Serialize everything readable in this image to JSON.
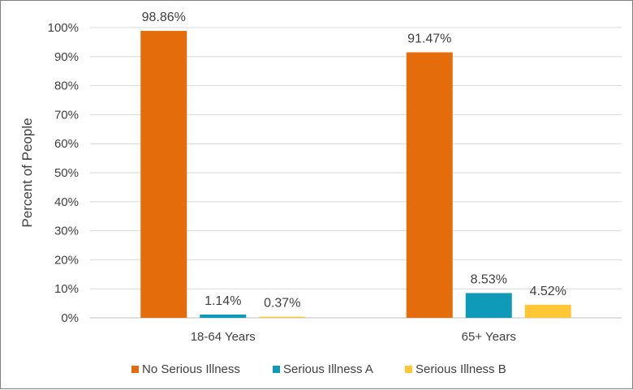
{
  "chart_data": {
    "type": "bar",
    "categories": [
      "18-64 Years",
      "65+ Years"
    ],
    "series": [
      {
        "name": "No Serious Illness",
        "values": [
          98.86,
          91.47
        ],
        "labels": [
          "98.86%",
          "91.47%"
        ],
        "color": "#E46C0A"
      },
      {
        "name": "Serious Illness A",
        "values": [
          1.14,
          8.53
        ],
        "labels": [
          "1.14%",
          "8.53%"
        ],
        "color": "#0E9AB8"
      },
      {
        "name": "Serious Illness B",
        "values": [
          0.37,
          4.52
        ],
        "labels": [
          "0.37%",
          "4.52%"
        ],
        "color": "#FFC735"
      }
    ],
    "ylabel": "Percent of People",
    "ylim": [
      0,
      100
    ],
    "yticks": [
      0,
      10,
      20,
      30,
      40,
      50,
      60,
      70,
      80,
      90,
      100
    ],
    "ytick_labels": [
      "0%",
      "10%",
      "20%",
      "30%",
      "40%",
      "50%",
      "60%",
      "70%",
      "80%",
      "90%",
      "100%"
    ],
    "grid": true,
    "legend": "bottom",
    "gridline_color": "#D9D9D9",
    "axis_color": "#BFBFBF"
  }
}
